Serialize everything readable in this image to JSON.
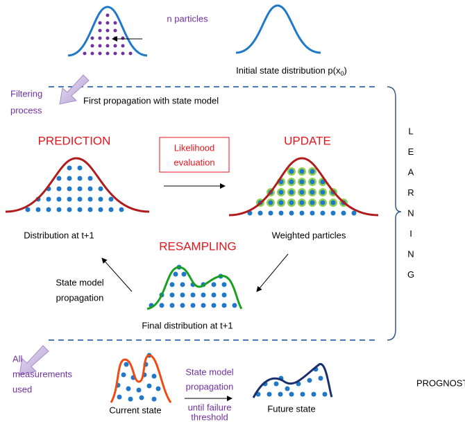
{
  "top": {
    "particles_label": "n particles",
    "initial_label": {
      "text": "Initial state distribution p(x",
      "sub": "0",
      "end": ")"
    }
  },
  "filtering": {
    "lines": [
      "Filtering",
      "process"
    ],
    "propagation_label": "First propagation with state model"
  },
  "learning": {
    "prediction": "PREDICTION",
    "update": "UPDATE",
    "resampling": "RESAMPLING",
    "likelihood": [
      "Likelihood",
      "evaluation"
    ],
    "prediction_caption": "Distribution at t+1",
    "update_caption": "Weighted particles",
    "propagation": [
      "State model",
      "propagation"
    ],
    "resampling_caption": "Final distribution at t+1",
    "side_label": [
      "L",
      "E",
      "A",
      "R",
      "N",
      "I",
      "N",
      "G"
    ]
  },
  "prognostics": {
    "measurements": [
      "All",
      "measurements",
      "used"
    ],
    "current": "Current state",
    "propagation": [
      "State model",
      "propagation"
    ],
    "until": [
      "until failure",
      "threshold"
    ],
    "future": "Future state",
    "label": "PROGNOSTICS"
  }
}
